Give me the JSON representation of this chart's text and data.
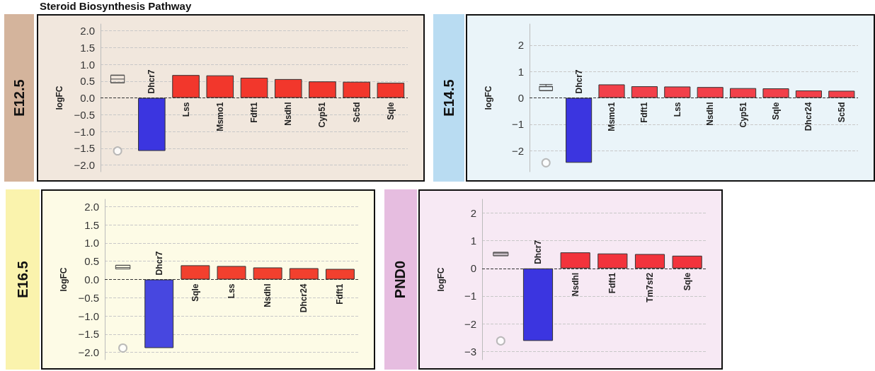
{
  "chart_data": [
    {
      "type": "bar",
      "title": "E12.5",
      "ylabel": "logFC",
      "annotations": [
        "Steroid Biosynthesis Pathway"
      ],
      "categories": [
        null,
        "Dhcr7",
        "Lss",
        "Msmo1",
        "Fdft1",
        "Nsdhl",
        "Cyp51",
        "Sc5d",
        "Sqle"
      ],
      "series": [
        {
          "type": "bar",
          "colors": [
            null,
            "#3b35e0",
            "#f2372c",
            "#f2372c",
            "#f2372c",
            "#f2372c",
            "#f2372c",
            "#f2372c",
            "#f2372c"
          ],
          "values": [
            null,
            -1.58,
            0.68,
            0.67,
            0.6,
            0.56,
            0.49,
            0.48,
            0.45
          ]
        },
        {
          "type": "box",
          "color": "#444444",
          "boxes": [
            {
              "low": 0.45,
              "q1": 0.45,
              "median": 0.56,
              "q3": 0.67,
              "high": 0.68,
              "outliers": [
                -1.58
              ]
            },
            null,
            null,
            null,
            null,
            null,
            null,
            null,
            null
          ]
        }
      ],
      "ylim": [
        -2.2,
        2.2
      ],
      "yticks": [
        {
          "value": -2,
          "label": "−2.0"
        },
        {
          "value": -1.5,
          "label": "−1.5"
        },
        {
          "value": -1,
          "label": "−1.0"
        },
        {
          "value": -0.5,
          "label": "−0.5"
        },
        {
          "value": 0,
          "label": "0.0"
        },
        {
          "value": 0.5,
          "label": "0.5"
        },
        {
          "value": 1,
          "label": "1.0"
        },
        {
          "value": 1.5,
          "label": "1.5"
        },
        {
          "value": 2,
          "label": "2.0"
        }
      ],
      "ref_lines": [
        {
          "axis": "y",
          "value": 0,
          "label": null,
          "color": "#333333",
          "line_style": "dashed"
        }
      ],
      "grid": "y"
    },
    {
      "type": "bar",
      "title": "E14.5",
      "ylabel": "logFC",
      "categories": [
        null,
        "Dhcr7",
        "Msmo1",
        "Fdft1",
        "Lss",
        "Nsdhl",
        "Cyp51",
        "Sqle",
        "Dhcr24",
        "Sc5d"
      ],
      "series": [
        {
          "type": "bar",
          "colors": [
            null,
            "#3b35e0",
            "#f2404a",
            "#f2404a",
            "#f2404a",
            "#f2404a",
            "#f2404a",
            "#f2404a",
            "#f2404a",
            "#f2404a"
          ],
          "values": [
            null,
            -2.46,
            0.51,
            0.44,
            0.43,
            0.41,
            0.37,
            0.36,
            0.28,
            0.27
          ]
        },
        {
          "type": "box",
          "color": "#444444",
          "boxes": [
            {
              "low": 0.27,
              "q1": 0.28,
              "median": 0.42,
              "q3": 0.44,
              "high": 0.51,
              "outliers": [
                -2.46
              ]
            },
            null,
            null,
            null,
            null,
            null,
            null,
            null,
            null,
            null
          ]
        }
      ],
      "ylim": [
        -2.8,
        2.8
      ],
      "yticks": [
        {
          "value": -2,
          "label": "−2"
        },
        {
          "value": -1,
          "label": "−1"
        },
        0,
        1,
        2
      ],
      "ref_lines": [
        {
          "axis": "y",
          "value": 0,
          "label": null,
          "color": "#333333",
          "line_style": "dashed"
        }
      ],
      "grid": "y"
    },
    {
      "type": "bar",
      "title": "E16.5",
      "ylabel": "logFC",
      "categories": [
        null,
        "Dhcr7",
        "Sqle",
        "Lss",
        "Nsdhl",
        "Dhcr24",
        "Fdft1"
      ],
      "series": [
        {
          "type": "bar",
          "colors": [
            null,
            "#4747e0",
            "#f2402e",
            "#f2402e",
            "#f2402e",
            "#f2402e",
            "#f2402e"
          ],
          "values": [
            null,
            -1.88,
            0.39,
            0.37,
            0.33,
            0.31,
            0.29
          ]
        },
        {
          "type": "box",
          "color": "#444444",
          "boxes": [
            {
              "low": 0.29,
              "q1": 0.29,
              "median": 0.33,
              "q3": 0.39,
              "high": 0.39,
              "outliers": [
                -1.88
              ]
            },
            null,
            null,
            null,
            null,
            null,
            null
          ]
        }
      ],
      "ylim": [
        -2.2,
        2.2
      ],
      "yticks": [
        {
          "value": -2,
          "label": "−2.0"
        },
        {
          "value": -1.5,
          "label": "−1.5"
        },
        {
          "value": -1,
          "label": "−1.0"
        },
        {
          "value": -0.5,
          "label": "−0.5"
        },
        {
          "value": 0,
          "label": "0.0"
        },
        {
          "value": 0.5,
          "label": "0.5"
        },
        {
          "value": 1,
          "label": "1.0"
        },
        {
          "value": 1.5,
          "label": "1.5"
        },
        {
          "value": 2,
          "label": "2.0"
        }
      ],
      "ref_lines": [
        {
          "axis": "y",
          "value": 0,
          "label": null,
          "color": "#333333",
          "line_style": "dashed"
        }
      ],
      "grid": "y"
    },
    {
      "type": "bar",
      "title": "PND0",
      "ylabel": "logFC",
      "categories": [
        null,
        "Dhcr7",
        "Nsdhl",
        "Fdft1",
        "Tm7sf2",
        "Sqle"
      ],
      "series": [
        {
          "type": "bar",
          "colors": [
            null,
            "#3b35e0",
            "#f2333c",
            "#f2333c",
            "#f2333c",
            "#f2333c"
          ],
          "values": [
            null,
            -2.62,
            0.58,
            0.54,
            0.52,
            0.46
          ]
        },
        {
          "type": "box",
          "color": "#444444",
          "boxes": [
            {
              "low": 0.46,
              "q1": 0.46,
              "median": 0.53,
              "q3": 0.58,
              "high": 0.58,
              "outliers": [
                -2.62
              ]
            },
            null,
            null,
            null,
            null,
            null
          ]
        }
      ],
      "ylim": [
        -3.3,
        2.5
      ],
      "yticks": [
        {
          "value": -3,
          "label": "−3"
        },
        {
          "value": -2,
          "label": "−2"
        },
        {
          "value": -1,
          "label": "−1"
        },
        0,
        1,
        2
      ],
      "ref_lines": [
        {
          "axis": "y",
          "value": 0,
          "label": null,
          "color": "#333333",
          "line_style": "dashed"
        }
      ],
      "grid": "y"
    }
  ]
}
